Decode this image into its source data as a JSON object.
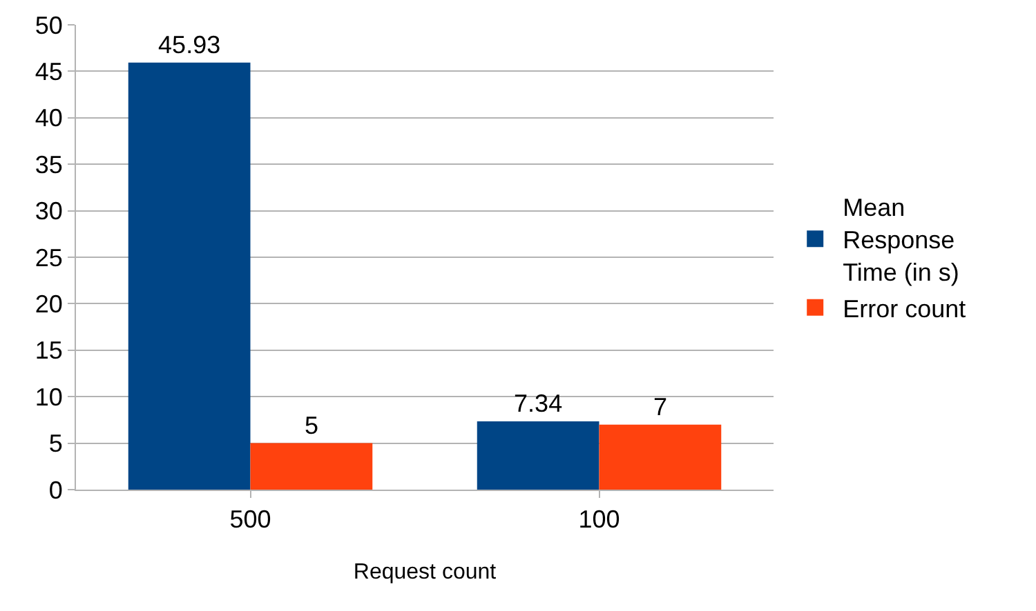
{
  "chart_data": {
    "type": "bar",
    "xlabel": "Request count",
    "categories": [
      "500",
      "100"
    ],
    "series": [
      {
        "name": "Mean Response Time (in s)",
        "color": "#004586",
        "values": [
          45.93,
          7.34
        ]
      },
      {
        "name": "Error count",
        "color": "#ff420e",
        "values": [
          5,
          7
        ]
      }
    ],
    "ylim": [
      0,
      50
    ],
    "yticks": [
      0,
      5,
      10,
      15,
      20,
      25,
      30,
      35,
      40,
      45,
      50
    ],
    "grid": "y",
    "legend": "right",
    "data_labels": true
  }
}
